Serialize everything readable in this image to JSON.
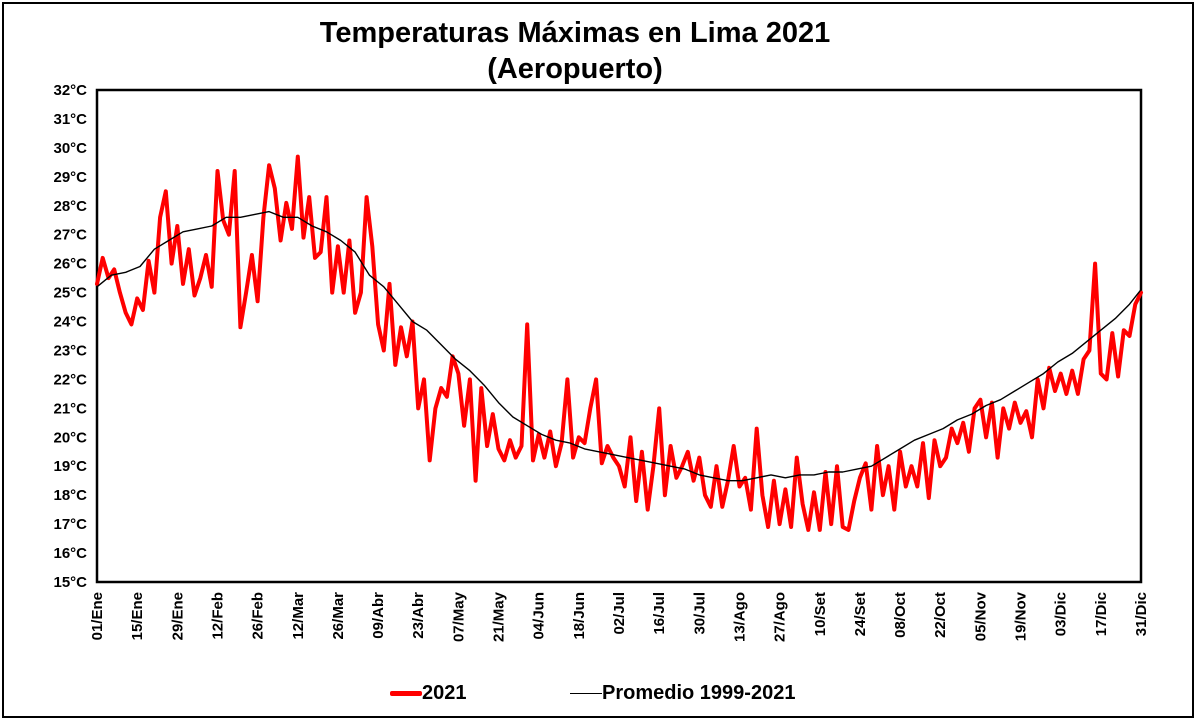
{
  "chart_data": {
    "type": "line",
    "title": "Temperaturas Máximas en Lima 2021",
    "subtitle": "(Aeropuerto)",
    "xlabel": "",
    "ylabel": "",
    "ylim": [
      15,
      32
    ],
    "y_ticks": [
      "15°C",
      "16°C",
      "17°C",
      "18°C",
      "19°C",
      "20°C",
      "21°C",
      "22°C",
      "23°C",
      "24°C",
      "25°C",
      "26°C",
      "27°C",
      "28°C",
      "29°C",
      "30°C",
      "31°C",
      "32°C"
    ],
    "x_ticks": [
      "01/Ene",
      "15/Ene",
      "29/Ene",
      "12/Feb",
      "26/Feb",
      "12/Mar",
      "26/Mar",
      "09/Abr",
      "23/Abr",
      "07/May",
      "21/May",
      "04/Jun",
      "18/Jun",
      "02/Jul",
      "16/Jul",
      "30/Jul",
      "13/Ago",
      "27/Ago",
      "10/Set",
      "24/Set",
      "08/Oct",
      "22/Oct",
      "05/Nov",
      "19/Nov",
      "03/Dic",
      "17/Dic",
      "31/Dic"
    ],
    "x_tick_day": [
      1,
      15,
      29,
      43,
      57,
      71,
      85,
      99,
      113,
      127,
      141,
      155,
      169,
      183,
      197,
      211,
      225,
      239,
      253,
      267,
      281,
      295,
      309,
      323,
      337,
      351,
      365
    ],
    "grid": false,
    "legend_position": "bottom",
    "series": [
      {
        "name": "2021",
        "color": "#ff0000",
        "points": [
          [
            1,
            25.3
          ],
          [
            3,
            26.2
          ],
          [
            5,
            25.5
          ],
          [
            7,
            25.8
          ],
          [
            9,
            25.0
          ],
          [
            11,
            24.3
          ],
          [
            13,
            23.9
          ],
          [
            15,
            24.8
          ],
          [
            17,
            24.4
          ],
          [
            19,
            26.1
          ],
          [
            21,
            25.0
          ],
          [
            23,
            27.6
          ],
          [
            25,
            28.5
          ],
          [
            27,
            26.0
          ],
          [
            29,
            27.3
          ],
          [
            31,
            25.3
          ],
          [
            33,
            26.5
          ],
          [
            35,
            24.9
          ],
          [
            37,
            25.5
          ],
          [
            39,
            26.3
          ],
          [
            41,
            25.2
          ],
          [
            43,
            29.2
          ],
          [
            45,
            27.5
          ],
          [
            47,
            27.0
          ],
          [
            49,
            29.2
          ],
          [
            51,
            23.8
          ],
          [
            53,
            25.0
          ],
          [
            55,
            26.3
          ],
          [
            57,
            24.7
          ],
          [
            59,
            27.6
          ],
          [
            61,
            29.4
          ],
          [
            63,
            28.6
          ],
          [
            65,
            26.8
          ],
          [
            67,
            28.1
          ],
          [
            69,
            27.2
          ],
          [
            71,
            29.7
          ],
          [
            73,
            26.9
          ],
          [
            75,
            28.3
          ],
          [
            77,
            26.2
          ],
          [
            79,
            26.4
          ],
          [
            81,
            28.3
          ],
          [
            83,
            25.0
          ],
          [
            85,
            26.6
          ],
          [
            87,
            25.0
          ],
          [
            89,
            26.8
          ],
          [
            91,
            24.3
          ],
          [
            93,
            25.0
          ],
          [
            95,
            28.3
          ],
          [
            97,
            26.6
          ],
          [
            99,
            23.9
          ],
          [
            101,
            23.0
          ],
          [
            103,
            25.3
          ],
          [
            105,
            22.5
          ],
          [
            107,
            23.8
          ],
          [
            109,
            22.8
          ],
          [
            111,
            24.0
          ],
          [
            113,
            21.0
          ],
          [
            115,
            22.0
          ],
          [
            117,
            19.2
          ],
          [
            119,
            21.0
          ],
          [
            121,
            21.7
          ],
          [
            123,
            21.4
          ],
          [
            125,
            22.8
          ],
          [
            127,
            22.2
          ],
          [
            129,
            20.4
          ],
          [
            131,
            22.0
          ],
          [
            133,
            18.5
          ],
          [
            135,
            21.7
          ],
          [
            137,
            19.7
          ],
          [
            139,
            20.8
          ],
          [
            141,
            19.6
          ],
          [
            143,
            19.2
          ],
          [
            145,
            19.9
          ],
          [
            147,
            19.3
          ],
          [
            149,
            19.7
          ],
          [
            151,
            23.9
          ],
          [
            153,
            19.2
          ],
          [
            155,
            20.1
          ],
          [
            157,
            19.3
          ],
          [
            159,
            20.2
          ],
          [
            161,
            19.0
          ],
          [
            163,
            19.8
          ],
          [
            165,
            22.0
          ],
          [
            167,
            19.3
          ],
          [
            169,
            20.0
          ],
          [
            171,
            19.8
          ],
          [
            173,
            21.0
          ],
          [
            175,
            22.0
          ],
          [
            177,
            19.1
          ],
          [
            179,
            19.7
          ],
          [
            181,
            19.3
          ],
          [
            183,
            19.0
          ],
          [
            185,
            18.3
          ],
          [
            187,
            20.0
          ],
          [
            189,
            17.8
          ],
          [
            191,
            19.5
          ],
          [
            193,
            17.5
          ],
          [
            195,
            19.0
          ],
          [
            197,
            21.0
          ],
          [
            199,
            18.0
          ],
          [
            201,
            19.7
          ],
          [
            203,
            18.6
          ],
          [
            205,
            19.0
          ],
          [
            207,
            19.5
          ],
          [
            209,
            18.5
          ],
          [
            211,
            19.3
          ],
          [
            213,
            18.0
          ],
          [
            215,
            17.6
          ],
          [
            217,
            19.0
          ],
          [
            219,
            17.6
          ],
          [
            221,
            18.5
          ],
          [
            223,
            19.7
          ],
          [
            225,
            18.3
          ],
          [
            227,
            18.6
          ],
          [
            229,
            17.5
          ],
          [
            231,
            20.3
          ],
          [
            233,
            18.0
          ],
          [
            235,
            16.9
          ],
          [
            237,
            18.5
          ],
          [
            239,
            17.0
          ],
          [
            241,
            18.2
          ],
          [
            243,
            16.9
          ],
          [
            245,
            19.3
          ],
          [
            247,
            17.7
          ],
          [
            249,
            16.8
          ],
          [
            251,
            18.1
          ],
          [
            253,
            16.8
          ],
          [
            255,
            18.8
          ],
          [
            257,
            17.0
          ],
          [
            259,
            19.0
          ],
          [
            261,
            16.9
          ],
          [
            263,
            16.8
          ],
          [
            265,
            17.8
          ],
          [
            267,
            18.6
          ],
          [
            269,
            19.1
          ],
          [
            271,
            17.5
          ],
          [
            273,
            19.7
          ],
          [
            275,
            18.0
          ],
          [
            277,
            19.0
          ],
          [
            279,
            17.5
          ],
          [
            281,
            19.5
          ],
          [
            283,
            18.3
          ],
          [
            285,
            19.0
          ],
          [
            287,
            18.3
          ],
          [
            289,
            19.8
          ],
          [
            291,
            17.9
          ],
          [
            293,
            19.9
          ],
          [
            295,
            19.0
          ],
          [
            297,
            19.3
          ],
          [
            299,
            20.3
          ],
          [
            301,
            19.8
          ],
          [
            303,
            20.5
          ],
          [
            305,
            19.5
          ],
          [
            307,
            21.0
          ],
          [
            309,
            21.3
          ],
          [
            311,
            20.0
          ],
          [
            313,
            21.2
          ],
          [
            315,
            19.3
          ],
          [
            317,
            21.0
          ],
          [
            319,
            20.3
          ],
          [
            321,
            21.2
          ],
          [
            323,
            20.5
          ],
          [
            325,
            20.9
          ],
          [
            327,
            20.0
          ],
          [
            329,
            22.0
          ],
          [
            331,
            21.0
          ],
          [
            333,
            22.4
          ],
          [
            335,
            21.6
          ],
          [
            337,
            22.2
          ],
          [
            339,
            21.5
          ],
          [
            341,
            22.3
          ],
          [
            343,
            21.5
          ],
          [
            345,
            22.7
          ],
          [
            347,
            23.0
          ],
          [
            349,
            26.0
          ],
          [
            351,
            22.2
          ],
          [
            353,
            22.0
          ],
          [
            355,
            23.6
          ],
          [
            357,
            22.1
          ],
          [
            359,
            23.7
          ],
          [
            361,
            23.5
          ],
          [
            363,
            24.6
          ],
          [
            365,
            25.0
          ]
        ]
      },
      {
        "name": "Promedio 1999-2021",
        "color": "#000000",
        "points": [
          [
            1,
            25.2
          ],
          [
            6,
            25.6
          ],
          [
            11,
            25.7
          ],
          [
            16,
            25.9
          ],
          [
            21,
            26.5
          ],
          [
            26,
            26.8
          ],
          [
            31,
            27.1
          ],
          [
            36,
            27.2
          ],
          [
            41,
            27.3
          ],
          [
            46,
            27.6
          ],
          [
            51,
            27.6
          ],
          [
            56,
            27.7
          ],
          [
            61,
            27.8
          ],
          [
            66,
            27.6
          ],
          [
            71,
            27.6
          ],
          [
            76,
            27.3
          ],
          [
            81,
            27.1
          ],
          [
            86,
            26.8
          ],
          [
            91,
            26.4
          ],
          [
            96,
            25.6
          ],
          [
            101,
            25.2
          ],
          [
            106,
            24.6
          ],
          [
            111,
            24.0
          ],
          [
            116,
            23.7
          ],
          [
            121,
            23.2
          ],
          [
            126,
            22.7
          ],
          [
            131,
            22.3
          ],
          [
            136,
            21.8
          ],
          [
            141,
            21.2
          ],
          [
            146,
            20.7
          ],
          [
            151,
            20.4
          ],
          [
            156,
            20.1
          ],
          [
            161,
            19.9
          ],
          [
            166,
            19.8
          ],
          [
            171,
            19.6
          ],
          [
            176,
            19.5
          ],
          [
            181,
            19.4
          ],
          [
            186,
            19.3
          ],
          [
            191,
            19.2
          ],
          [
            196,
            19.1
          ],
          [
            201,
            19.0
          ],
          [
            206,
            18.9
          ],
          [
            211,
            18.7
          ],
          [
            216,
            18.6
          ],
          [
            221,
            18.5
          ],
          [
            226,
            18.5
          ],
          [
            231,
            18.6
          ],
          [
            236,
            18.7
          ],
          [
            241,
            18.6
          ],
          [
            246,
            18.7
          ],
          [
            251,
            18.7
          ],
          [
            256,
            18.8
          ],
          [
            261,
            18.8
          ],
          [
            266,
            18.9
          ],
          [
            271,
            19.0
          ],
          [
            276,
            19.3
          ],
          [
            281,
            19.6
          ],
          [
            286,
            19.9
          ],
          [
            291,
            20.1
          ],
          [
            296,
            20.3
          ],
          [
            301,
            20.6
          ],
          [
            306,
            20.8
          ],
          [
            311,
            21.1
          ],
          [
            316,
            21.3
          ],
          [
            321,
            21.6
          ],
          [
            326,
            21.9
          ],
          [
            331,
            22.2
          ],
          [
            336,
            22.6
          ],
          [
            341,
            22.9
          ],
          [
            346,
            23.3
          ],
          [
            351,
            23.7
          ],
          [
            356,
            24.1
          ],
          [
            361,
            24.6
          ],
          [
            365,
            25.1
          ]
        ]
      }
    ]
  },
  "legend": {
    "item_2021": "2021",
    "item_avg": "Promedio 1999-2021"
  }
}
